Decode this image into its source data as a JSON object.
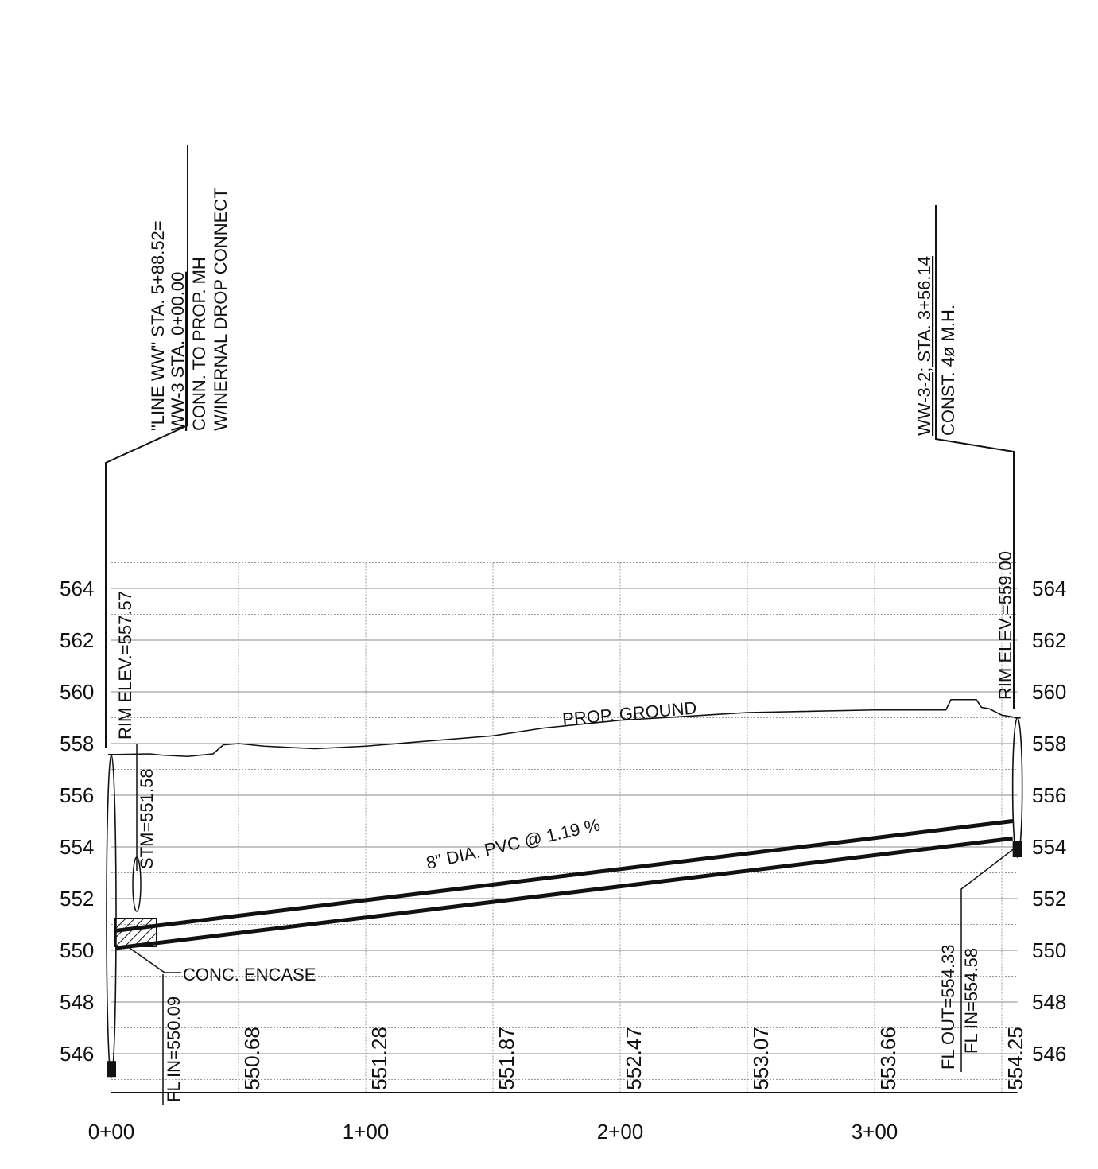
{
  "drawing": {
    "callout_left": {
      "line1": "\"LINE WW\" STA. 5+88.52=",
      "line2": "WW-3 STA. 0+00.00",
      "line3": "CONN. TO PROP. MH",
      "line4": "W/INERNAL DROP CONNECT"
    },
    "callout_right": {
      "line1": "WW-3-2; STA. 3+56.14",
      "line2": "CONST. 4ø M.H."
    },
    "rim_left": "RIM ELEV.=557.57",
    "rim_right": "RIM ELEV.=559.00",
    "stm": "STM=551.58",
    "ground_label": "PROP. GROUND",
    "pipe_label": "8\" DIA. PVC @ 1.19 %",
    "encase_label": "CONC. ENCASE",
    "fl_in_left": "FL IN=550.09",
    "fl_out_right": "FL OUT=554.33",
    "fl_in_right": "FL IN=554.58"
  },
  "chart_data": {
    "type": "line",
    "elev_ticks_left": [
      "564",
      "562",
      "560",
      "558",
      "556",
      "554",
      "552",
      "550",
      "548",
      "546"
    ],
    "elev_ticks_right": [
      "564",
      "562",
      "560",
      "558",
      "556",
      "554",
      "552",
      "550",
      "548",
      "546"
    ],
    "station_ticks": [
      "0+00",
      "1+00",
      "2+00",
      "3+00"
    ],
    "invert_labels": [
      {
        "sta": 50,
        "text": "550.68"
      },
      {
        "sta": 100,
        "text": "551.28"
      },
      {
        "sta": 150,
        "text": "551.87"
      },
      {
        "sta": 200,
        "text": "552.47"
      },
      {
        "sta": 250,
        "text": "553.07"
      },
      {
        "sta": 300,
        "text": "553.66"
      },
      {
        "sta": 350,
        "text": "554.25"
      }
    ],
    "pipe": {
      "start_sta": 0,
      "start_invert": 550.09,
      "end_sta": 356.14,
      "end_invert": 554.33,
      "slope_percent": 1.19
    },
    "ground": {
      "sta": [
        0,
        15,
        20,
        30,
        40,
        44,
        50,
        60,
        80,
        100,
        150,
        170,
        200,
        250,
        300,
        305,
        328,
        330,
        340,
        342,
        345,
        350,
        356
      ],
      "elev": [
        557.57,
        557.6,
        557.55,
        557.5,
        557.6,
        557.95,
        558.0,
        557.9,
        557.8,
        557.9,
        558.3,
        558.6,
        558.9,
        559.2,
        559.3,
        559.3,
        559.3,
        559.7,
        559.7,
        559.4,
        559.35,
        559.1,
        559.0
      ]
    },
    "xlim": [
      0,
      356.14
    ],
    "ylim": [
      544.5,
      565
    ]
  }
}
